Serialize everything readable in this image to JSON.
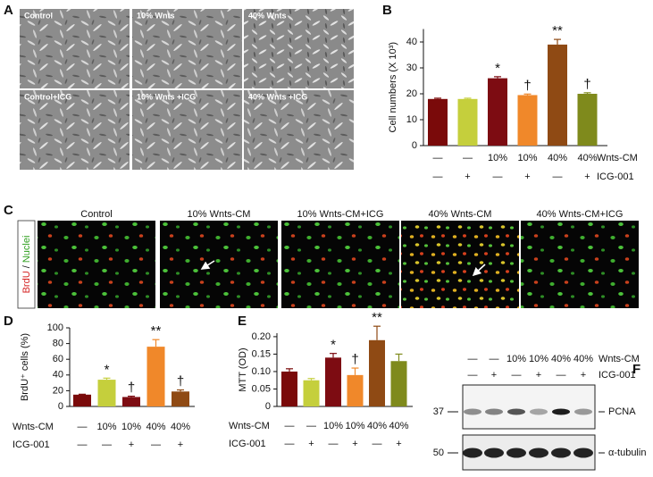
{
  "panel_letters": {
    "a": "A",
    "b": "B",
    "c": "C",
    "d": "D",
    "e": "E",
    "f": "F"
  },
  "phase_contrast_images": [
    "Control",
    "10% Wnts",
    "40% Wnts",
    "Control+ICG",
    "10% Wnts +ICG",
    "40% Wnts +ICG"
  ],
  "fluorescence": {
    "stain_red": "BrdU",
    "separator": "/",
    "stain_green": "Nuclei",
    "images": [
      "Control",
      "10% Wnts-CM",
      "10% Wnts-CM+ICG",
      "40% Wnts-CM",
      "40% Wnts-CM+ICG"
    ]
  },
  "western_blot": {
    "conditions": [
      {
        "name": "Wnts-CM",
        "labels": [
          "—",
          "—",
          "10%",
          "10%",
          "40%",
          "40%"
        ]
      },
      {
        "name": "ICG-001",
        "labels": [
          "—",
          "+",
          "—",
          "+",
          "—",
          "+"
        ]
      }
    ],
    "markers": [
      "37",
      "50"
    ],
    "proteins": [
      "PCNA",
      "α-tubulin"
    ]
  },
  "chart_data": [
    {
      "type": "bar",
      "ylabel": "Cell numbers (X 10³)",
      "values": [
        18,
        18,
        26,
        19.5,
        39,
        20
      ],
      "errors": [
        0.3,
        0.3,
        0.6,
        0.4,
        2,
        0.4
      ],
      "colors": [
        "#7a0a0a",
        "#c5cf3c",
        "#7d0c12",
        "#f0882a",
        "#8f4a14",
        "#7f8a1c"
      ],
      "annotations": [
        null,
        null,
        "*",
        "†",
        "**",
        "†"
      ],
      "conditions": [
        {
          "name": "Wnts-CM",
          "labels": [
            "—",
            "—",
            "10%",
            "10%",
            "40%",
            "40%"
          ]
        },
        {
          "name": "ICG-001",
          "labels": [
            "—",
            "+",
            "—",
            "+",
            "—",
            "+"
          ]
        }
      ],
      "condition_label_side": "right",
      "ylim": [
        0,
        45
      ],
      "yticks": [
        0,
        10,
        20,
        30,
        40
      ]
    },
    {
      "type": "bar",
      "ylabel": "BrdU⁺ cells (%)",
      "values": [
        15,
        34,
        12,
        76,
        19
      ],
      "errors": [
        0.5,
        2,
        1,
        9,
        2
      ],
      "colors": [
        "#7a0a0a",
        "#c5cf3c",
        "#7d0c12",
        "#f0882a",
        "#8f4a14"
      ],
      "annotations": [
        null,
        "*",
        "†",
        "**",
        "†"
      ],
      "conditions": [
        {
          "name": "Wnts-CM",
          "labels": [
            "—",
            "10%",
            "10%",
            "40%",
            "40%"
          ]
        },
        {
          "name": "ICG-001",
          "labels": [
            "—",
            "—",
            "+",
            "—",
            "+"
          ]
        }
      ],
      "condition_label_side": "left",
      "ylim": [
        0,
        100
      ],
      "yticks": [
        0,
        20,
        40,
        60,
        80,
        100
      ]
    },
    {
      "type": "bar",
      "ylabel": "MTT (OD)",
      "values": [
        0.1,
        0.075,
        0.14,
        0.09,
        0.19,
        0.13
      ],
      "errors": [
        0.008,
        0.005,
        0.012,
        0.02,
        0.04,
        0.02
      ],
      "colors": [
        "#7a0a0a",
        "#c5cf3c",
        "#7d0c12",
        "#f0882a",
        "#8f4a14",
        "#7f8a1c"
      ],
      "annotations": [
        null,
        null,
        "*",
        "†",
        "**",
        null
      ],
      "conditions": [
        {
          "name": "Wnts-CM",
          "labels": [
            "—",
            "—",
            "10%",
            "10%",
            "40%",
            "40%"
          ]
        },
        {
          "name": "ICG-001",
          "labels": [
            "—",
            "+",
            "—",
            "+",
            "—",
            "+"
          ]
        }
      ],
      "condition_label_side": "left",
      "ylim": [
        0,
        0.21
      ],
      "yticks": [
        0,
        0.05,
        {
          "value": 0.1,
          "label": "0.10"
        },
        0.15,
        {
          "value": 0.2,
          "label": "0.20"
        }
      ]
    }
  ]
}
